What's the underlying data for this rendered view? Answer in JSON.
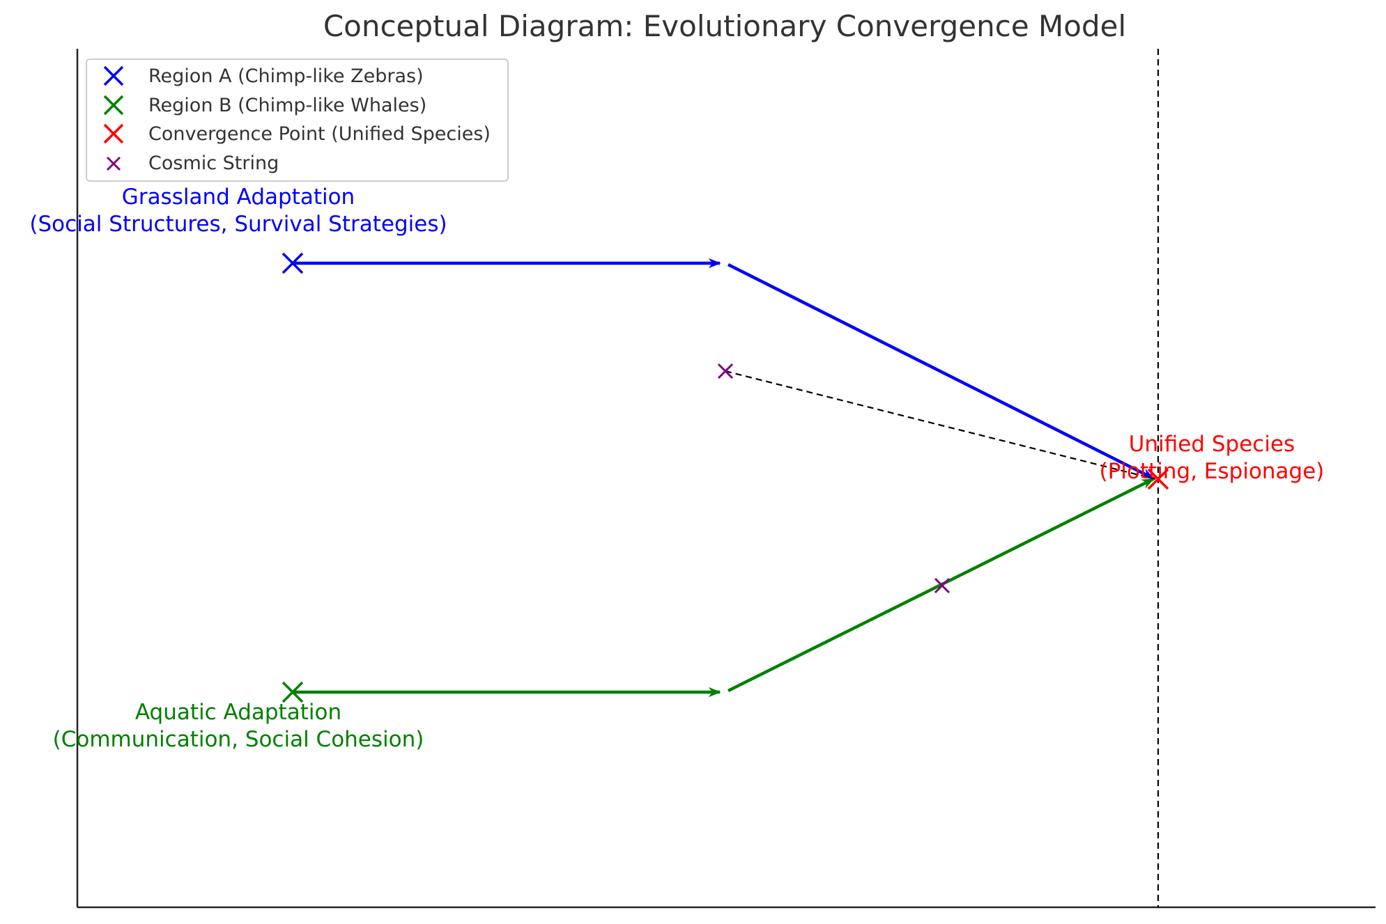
{
  "title": "Conceptual Diagram: Evolutionary Convergence Model",
  "colors": {
    "region_a": "#0000ff",
    "region_b": "#008000",
    "convergence": "#ff0000",
    "cosmic": "#800080",
    "axis": "#222222",
    "dashed": "#000000",
    "title": "#333333"
  },
  "legend": {
    "placement": "top-left",
    "items": [
      {
        "key": "region_a",
        "label": "Region A (Chimp-like Zebras)",
        "color": "#0000ff",
        "marker": "x-large"
      },
      {
        "key": "region_b",
        "label": "Region B (Chimp-like Whales)",
        "color": "#008000",
        "marker": "x-large"
      },
      {
        "key": "convergence",
        "label": "Convergence Point (Unified Species)",
        "color": "#ff0000",
        "marker": "x-large"
      },
      {
        "key": "cosmic",
        "label": "Cosmic String",
        "color": "#800080",
        "marker": "x-small"
      }
    ]
  },
  "labels": {
    "grassland": {
      "line1": "Grassland Adaptation",
      "line2": "(Social Structures, Survival Strategies)"
    },
    "aquatic": {
      "line1": "Aquatic Adaptation",
      "line2": "(Communication, Social Cohesion)"
    },
    "unified": {
      "line1": "Unified Species",
      "line2": "(Plotting, Espionage)"
    }
  }
}
